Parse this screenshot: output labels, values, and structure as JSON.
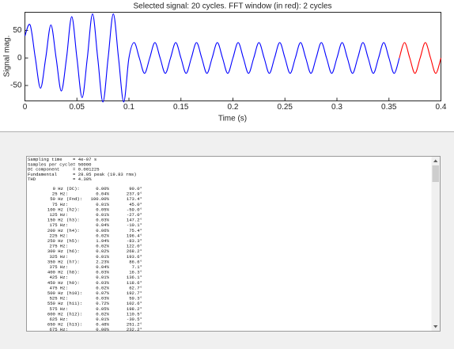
{
  "chart_data": {
    "type": "line",
    "title": "Selected signal: 20 cycles. FFT window (in red): 2 cycles",
    "xlabel": "Time (s)",
    "ylabel": "Signal mag.",
    "xlim": [
      0,
      0.4
    ],
    "xticks": [
      0,
      0.05,
      0.1,
      0.15,
      0.2,
      0.25,
      0.3,
      0.35,
      0.4
    ],
    "ylim": [
      -78,
      83
    ],
    "yticks": [
      -50,
      0,
      50
    ],
    "series": [
      {
        "color": "#0000ff",
        "x": [
          0,
          0.005,
          0.01,
          0.015,
          0.02,
          0.025,
          0.03,
          0.035,
          0.04,
          0.045,
          0.05,
          0.055,
          0.06,
          0.065,
          0.07,
          0.075,
          0.08,
          0.085,
          0.09,
          0.095,
          0.1,
          0.105,
          0.11,
          0.115,
          0.12,
          0.125,
          0.13,
          0.135,
          0.14,
          0.145,
          0.15,
          0.155,
          0.16,
          0.165,
          0.17,
          0.175,
          0.18,
          0.185,
          0.19,
          0.195,
          0.2,
          0.205,
          0.21,
          0.215,
          0.22,
          0.225,
          0.23,
          0.235,
          0.24,
          0.245,
          0.25,
          0.255,
          0.26,
          0.265,
          0.27,
          0.275,
          0.28,
          0.285,
          0.29,
          0.295,
          0.3,
          0.305,
          0.31,
          0.315,
          0.32,
          0.325,
          0.33,
          0.335,
          0.34,
          0.345,
          0.35,
          0.355,
          0.36
        ],
        "values": [
          40,
          60,
          0,
          -55,
          0,
          60,
          0,
          -60,
          0,
          75,
          0,
          -72,
          0,
          80,
          0,
          -80,
          0,
          80,
          0,
          -80,
          0,
          28,
          0,
          -28,
          0,
          28,
          0,
          -28,
          0,
          28,
          0,
          -28,
          0,
          28,
          0,
          -28,
          0,
          28,
          0,
          -28,
          0,
          28,
          0,
          -28,
          0,
          28,
          0,
          -28,
          0,
          28,
          0,
          -28,
          0,
          28,
          0,
          -28,
          0,
          28,
          0,
          -28,
          0,
          28,
          0,
          -28,
          0,
          28,
          0,
          -28,
          0,
          28,
          0,
          -28,
          0
        ]
      },
      {
        "color": "#ff0000",
        "x": [
          0.36,
          0.365,
          0.37,
          0.375,
          0.38,
          0.385,
          0.39,
          0.395,
          0.4
        ],
        "values": [
          0,
          28,
          0,
          -28,
          0,
          28,
          0,
          -28,
          0
        ]
      }
    ]
  },
  "report": {
    "header": [
      {
        "label": "Sampling time",
        "value": "= 4e-07 s"
      },
      {
        "label": "Samples per cycle",
        "value": "= 50000"
      },
      {
        "label": "DC component",
        "value": "= 0.001225"
      },
      {
        "label": "Fundamental",
        "value": "= 28.05 peak (19.83 rms)"
      },
      {
        "label": "THD",
        "value": "= 4.30%"
      }
    ],
    "rows": [
      {
        "freq": "0 Hz",
        "name": "(DC):",
        "mag": "0.00%",
        "phase": "90.0°"
      },
      {
        "freq": "25 Hz:",
        "mag": "0.04%",
        "phase": "237.9°"
      },
      {
        "freq": "50 Hz",
        "name": "(Fnd):",
        "mag": "100.00%",
        "phase": "173.4°"
      },
      {
        "freq": "75 Hz:",
        "mag": "0.01%",
        "phase": "45.0°"
      },
      {
        "freq": "100 Hz",
        "name": "(h2):",
        "mag": "0.05%",
        "phase": "-59.0°"
      },
      {
        "freq": "125 Hz:",
        "mag": "0.01%",
        "phase": "-27.0°"
      },
      {
        "freq": "150 Hz",
        "name": "(h3):",
        "mag": "0.03%",
        "phase": "147.2°"
      },
      {
        "freq": "175 Hz:",
        "mag": "0.04%",
        "phase": "-10.1°"
      },
      {
        "freq": "200 Hz",
        "name": "(h4):",
        "mag": "0.06%",
        "phase": "75.4°"
      },
      {
        "freq": "225 Hz:",
        "mag": "0.02%",
        "phase": "196.4°"
      },
      {
        "freq": "250 Hz",
        "name": "(h5):",
        "mag": "1.94%",
        "phase": "-83.3°"
      },
      {
        "freq": "275 Hz:",
        "mag": "0.02%",
        "phase": "122.0°"
      },
      {
        "freq": "300 Hz",
        "name": "(h6):",
        "mag": "0.02%",
        "phase": "268.2°"
      },
      {
        "freq": "325 Hz:",
        "mag": "0.01%",
        "phase": "193.6°"
      },
      {
        "freq": "350 Hz",
        "name": "(h7):",
        "mag": "2.23%",
        "phase": "86.6°"
      },
      {
        "freq": "375 Hz:",
        "mag": "0.04%",
        "phase": "7.1°"
      },
      {
        "freq": "400 Hz",
        "name": "(h8):",
        "mag": "0.03%",
        "phase": "16.3°"
      },
      {
        "freq": "425 Hz:",
        "mag": "0.01%",
        "phase": "136.1°"
      },
      {
        "freq": "450 Hz",
        "name": "(h9):",
        "mag": "0.03%",
        "phase": "118.6°"
      },
      {
        "freq": "475 Hz:",
        "mag": "0.02%",
        "phase": "62.7°"
      },
      {
        "freq": "500 Hz",
        "name": "(h10):",
        "mag": "0.07%",
        "phase": "192.7°"
      },
      {
        "freq": "525 Hz:",
        "mag": "0.03%",
        "phase": "59.3°"
      },
      {
        "freq": "550 Hz",
        "name": "(h11):",
        "mag": "0.72%",
        "phase": "102.6°"
      },
      {
        "freq": "575 Hz:",
        "mag": "0.05%",
        "phase": "198.2°"
      },
      {
        "freq": "600 Hz",
        "name": "(h12):",
        "mag": "0.02%",
        "phase": "110.5°"
      },
      {
        "freq": "625 Hz:",
        "mag": "0.01%",
        "phase": "-30.5°"
      },
      {
        "freq": "650 Hz",
        "name": "(h13):",
        "mag": "0.48%",
        "phase": "251.2°"
      },
      {
        "freq": "675 Hz:",
        "mag": "0.00%",
        "phase": "232.2°"
      }
    ]
  }
}
